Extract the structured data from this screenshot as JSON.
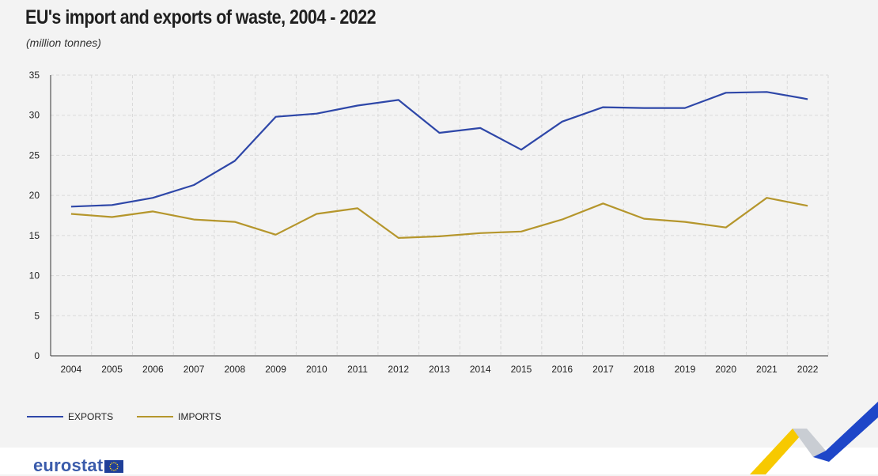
{
  "title": "EU's import and exports of waste, 2004 - 2022",
  "subtitle": "(million tonnes)",
  "logo_text": "eurostat",
  "colors": {
    "exports": "#2e47a8",
    "imports": "#b5962c",
    "brand": "#3a5bab"
  },
  "chart_data": {
    "type": "line",
    "title": "EU's import and exports of waste, 2004 - 2022",
    "subtitle": "(million tonnes)",
    "xlabel": "",
    "ylabel": "",
    "ylim": [
      0,
      35
    ],
    "yticks": [
      0,
      5,
      10,
      15,
      20,
      25,
      30,
      35
    ],
    "grid": true,
    "legend_position": "bottom-left",
    "x": [
      "2004",
      "2005",
      "2006",
      "2007",
      "2008",
      "2009",
      "2010",
      "2011",
      "2012",
      "2013",
      "2014",
      "2015",
      "2016",
      "2017",
      "2018",
      "2019",
      "2020",
      "2021",
      "2022"
    ],
    "series": [
      {
        "name": "EXPORTS",
        "color": "#2e47a8",
        "values": [
          18.6,
          18.8,
          19.7,
          21.3,
          24.3,
          29.8,
          30.2,
          31.2,
          31.9,
          27.8,
          28.4,
          25.7,
          29.2,
          31.0,
          30.9,
          30.9,
          32.8,
          32.9,
          32.0
        ]
      },
      {
        "name": "IMPORTS",
        "color": "#b5962c",
        "values": [
          17.7,
          17.3,
          18.0,
          17.0,
          16.7,
          15.1,
          17.7,
          18.4,
          14.7,
          14.9,
          15.3,
          15.5,
          17.0,
          19.0,
          17.1,
          16.7,
          16.0,
          19.7,
          18.7
        ]
      }
    ]
  }
}
